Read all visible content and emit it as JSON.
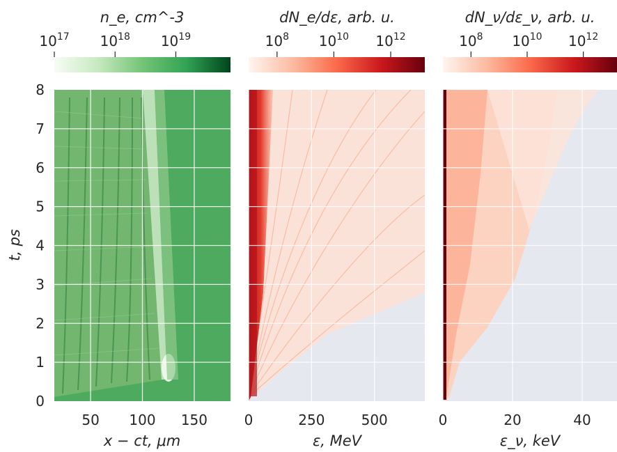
{
  "chart_data": [
    {
      "type": "heatmap",
      "colormap": "Greens",
      "xlabel": "x − ct,  μm",
      "ylabel": "t,  ps",
      "xlim": [
        15,
        185
      ],
      "ylim": [
        0,
        8
      ],
      "xticks": [
        "50",
        "100",
        "150"
      ],
      "xtick_values": [
        50,
        100,
        150
      ],
      "yticks": [
        "0",
        "1",
        "2",
        "3",
        "4",
        "5",
        "6",
        "7",
        "8"
      ],
      "ytick_values": [
        0,
        1,
        2,
        3,
        4,
        5,
        6,
        7,
        8
      ],
      "colorbar": {
        "label": "n_e, cm^-3",
        "scale": "log",
        "range_exponents": [
          17,
          19.9
        ],
        "ticks": [
          {
            "base": "10",
            "exp": "17",
            "value": 17
          },
          {
            "base": "10",
            "exp": "18",
            "value": 18
          },
          {
            "base": "10",
            "exp": "19",
            "value": 19
          }
        ]
      },
      "grid": true
    },
    {
      "type": "heatmap",
      "colormap": "Reds",
      "xlabel": "ε, MeV",
      "xlim": [
        0,
        700
      ],
      "ylim": [
        0,
        8
      ],
      "xticks": [
        "0",
        "250",
        "500"
      ],
      "xtick_values": [
        0,
        250,
        500
      ],
      "colorbar": {
        "label": "dN_e/dε, arb. u.",
        "scale": "log",
        "range_exponents": [
          7,
          13.2
        ],
        "ticks": [
          {
            "base": "10",
            "exp": "8",
            "value": 8
          },
          {
            "base": "10",
            "exp": "10",
            "value": 10
          },
          {
            "base": "10",
            "exp": "12",
            "value": 12
          }
        ]
      },
      "grid": true
    },
    {
      "type": "heatmap",
      "colormap": "Reds",
      "xlabel": "ε_ν, keV",
      "xlim": [
        0,
        50
      ],
      "ylim": [
        0,
        8
      ],
      "xticks": [
        "0",
        "20",
        "40"
      ],
      "xtick_values": [
        0,
        20,
        40
      ],
      "colorbar": {
        "label": "dN_ν/dε_ν, arb. u.",
        "scale": "log",
        "range_exponents": [
          7,
          13.2
        ],
        "ticks": [
          {
            "base": "10",
            "exp": "8",
            "value": 8
          },
          {
            "base": "10",
            "exp": "10",
            "value": 10
          },
          {
            "base": "10",
            "exp": "12",
            "value": 12
          }
        ]
      },
      "grid": true
    }
  ]
}
